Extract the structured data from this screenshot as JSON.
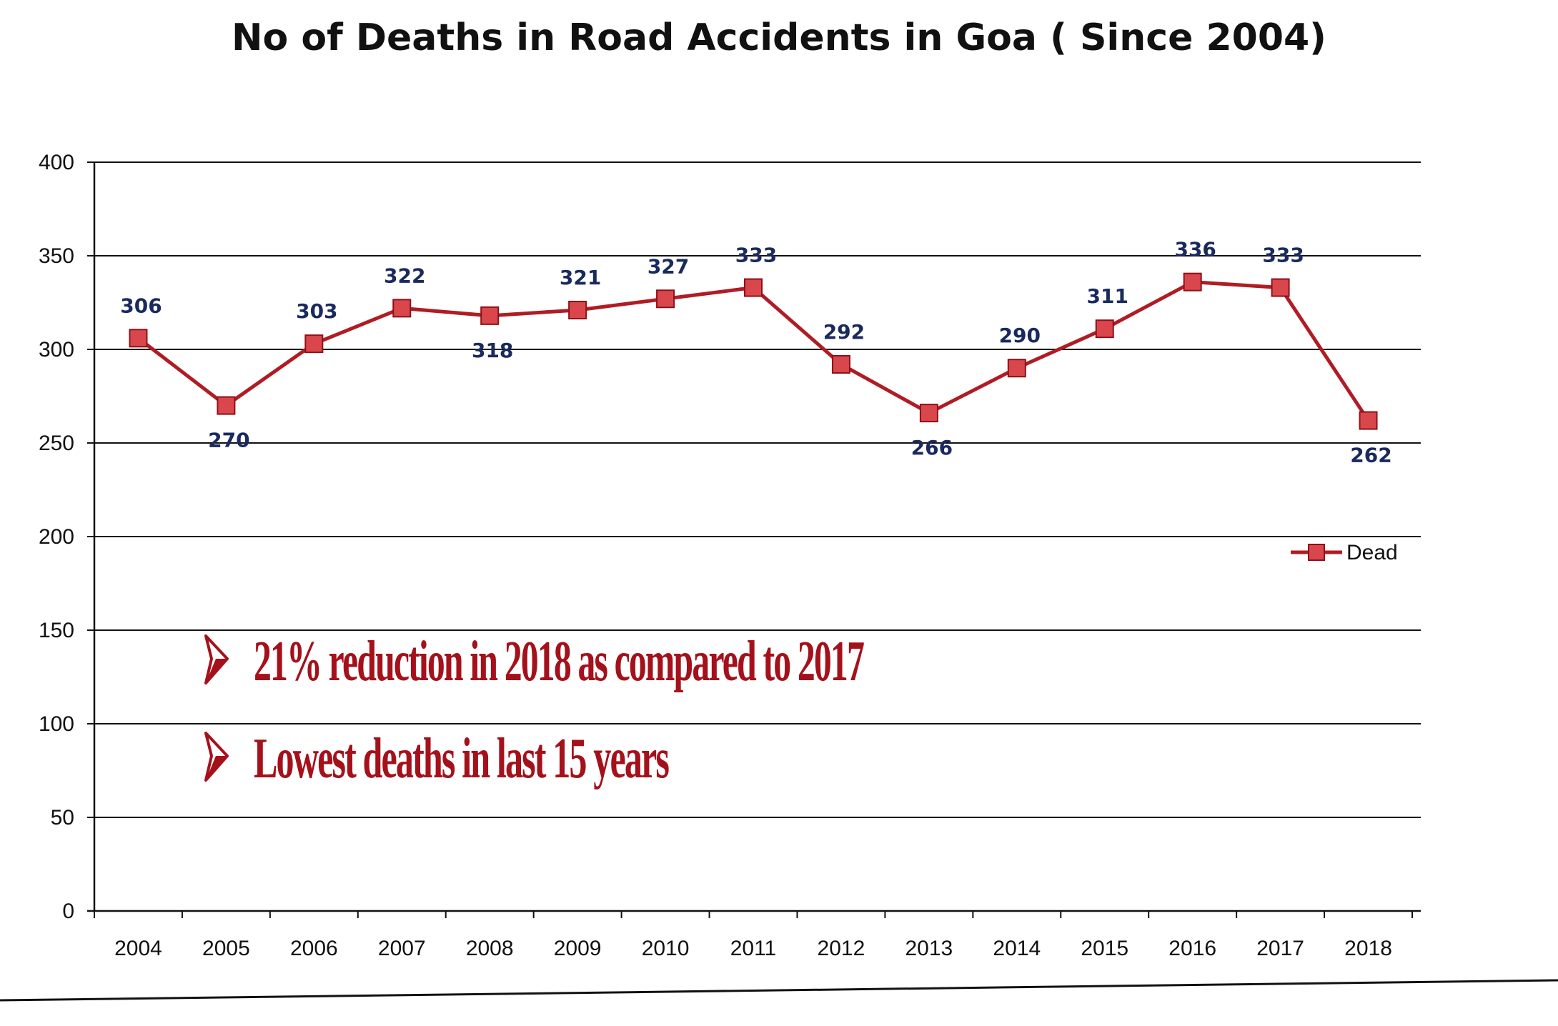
{
  "chart_data": {
    "type": "line",
    "title": "No of Deaths in Road Accidents in Goa ( Since 2004)",
    "xlabel": "",
    "ylabel": "",
    "categories": [
      "2004",
      "2005",
      "2006",
      "2007",
      "2008",
      "2009",
      "2010",
      "2011",
      "2012",
      "2013",
      "2014",
      "2015",
      "2016",
      "2017",
      "2018"
    ],
    "series": [
      {
        "name": "Dead",
        "values": [
          306,
          270,
          303,
          322,
          318,
          321,
          327,
          333,
          292,
          266,
          290,
          311,
          336,
          333,
          262
        ],
        "color": "#b01c24",
        "marker_fill": "#d9474c",
        "marker": "square"
      }
    ],
    "data_label_color": "#1a2a5e",
    "ylim": [
      0,
      400
    ],
    "yticks": [
      "0",
      "50",
      "100",
      "150",
      "200",
      "250",
      "300",
      "350",
      "400"
    ],
    "grid": true,
    "legend_position": "right",
    "annotations": [
      "21% reduction in 2018 as compared to 2017",
      "Lowest deaths in last 15 years"
    ],
    "annotation_color": "#a5111b"
  }
}
